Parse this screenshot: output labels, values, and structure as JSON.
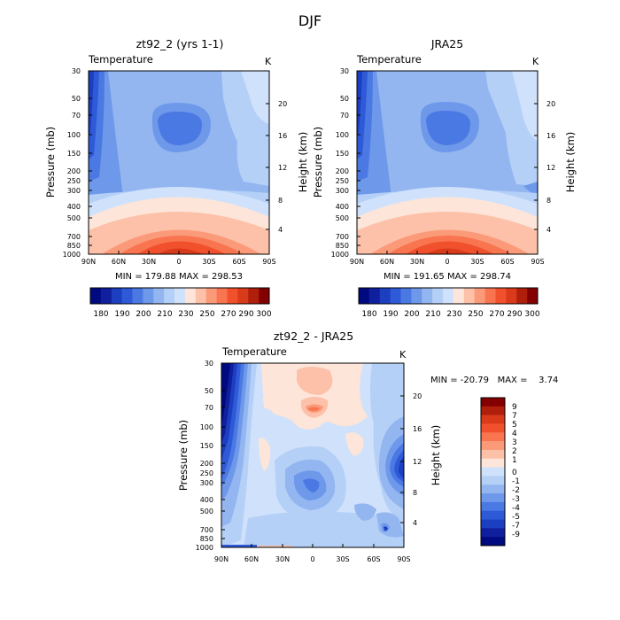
{
  "page": {
    "title": "DJF"
  },
  "colors": {
    "warm": [
      "#fde5d9",
      "#fcc1a8",
      "#fb9a79",
      "#f87550",
      "#f1502c",
      "#d93a1a",
      "#b01f0b",
      "#840000"
    ],
    "cool": [
      "#d0e2fb",
      "#b5d0f7",
      "#93b6f1",
      "#6e98ea",
      "#4b79e3",
      "#2e5ad8",
      "#1c3ec0",
      "#101f9e",
      "#000a80"
    ],
    "panel_levels": [
      "#000a80",
      "#101f9e",
      "#1c3ec0",
      "#2e5ad8",
      "#4b79e3",
      "#6e98ea",
      "#93b6f1",
      "#b5d0f7",
      "#d0e2fb",
      "#fde5d9",
      "#fcc1a8",
      "#fb9a79",
      "#f87550",
      "#f1502c",
      "#d93a1a",
      "#b01f0b",
      "#840000"
    ]
  },
  "chart_data": [
    {
      "type": "heatmap",
      "title": "zt92_2 (yrs 1-1)",
      "subtitle_left": "Temperature",
      "subtitle_right": "K",
      "ylabel": "Pressure (mb)",
      "ylabel_right": "Height (km)",
      "x_ticks": [
        "90N",
        "60N",
        "30N",
        "0",
        "30S",
        "60S",
        "90S"
      ],
      "y_ticks": [
        "30",
        "50",
        "70",
        "100",
        "150",
        "200",
        "250",
        "300",
        "400",
        "500",
        "700",
        "850",
        "1000"
      ],
      "y_ticks_right": [
        "20",
        "16",
        "12",
        "8",
        "4"
      ],
      "stats": "MIN = 179.88   MAX = 298.53",
      "colorbar_labels": [
        "180",
        "190",
        "200",
        "210",
        "230",
        "250",
        "270",
        "290",
        "300"
      ]
    },
    {
      "type": "heatmap",
      "title": "JRA25",
      "subtitle_left": "Temperature",
      "subtitle_right": "K",
      "ylabel": "Pressure (mb)",
      "ylabel_right": "Height (km)",
      "x_ticks": [
        "90N",
        "60N",
        "30N",
        "0",
        "30S",
        "60S",
        "90S"
      ],
      "y_ticks": [
        "30",
        "50",
        "70",
        "100",
        "150",
        "200",
        "250",
        "300",
        "400",
        "500",
        "700",
        "850",
        "1000"
      ],
      "y_ticks_right": [
        "20",
        "16",
        "12",
        "8",
        "4"
      ],
      "stats": "MIN = 191.65   MAX = 298.74",
      "colorbar_labels": [
        "180",
        "190",
        "200",
        "210",
        "230",
        "250",
        "270",
        "290",
        "300"
      ]
    },
    {
      "type": "heatmap",
      "title": "zt92_2 - JRA25",
      "subtitle_left": "Temperature",
      "subtitle_right": "K",
      "ylabel": "Pressure (mb)",
      "ylabel_right": "Height (km)",
      "x_ticks": [
        "90N",
        "60N",
        "30N",
        "0",
        "30S",
        "60S",
        "90S"
      ],
      "y_ticks": [
        "30",
        "50",
        "70",
        "100",
        "150",
        "200",
        "250",
        "300",
        "400",
        "500",
        "700",
        "850",
        "1000"
      ],
      "y_ticks_right": [
        "20",
        "16",
        "12",
        "8",
        "4"
      ],
      "stats": "MIN = -20.79   MAX =    3.74",
      "colorbar_labels": [
        "9",
        "7",
        "5",
        "4",
        "3",
        "2",
        "1",
        "0",
        "-1",
        "-2",
        "-3",
        "-4",
        "-5",
        "-7",
        "-9"
      ]
    }
  ]
}
